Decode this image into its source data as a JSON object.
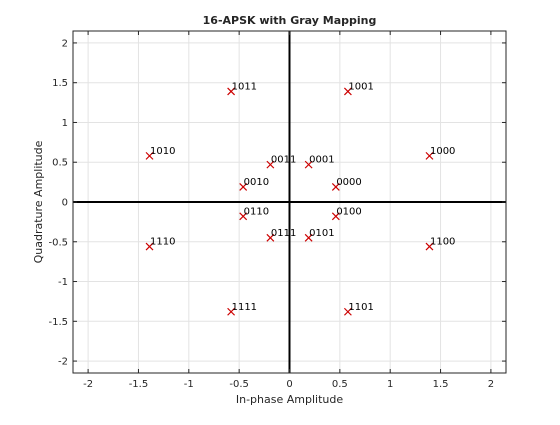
{
  "chart_data": {
    "type": "scatter",
    "title": "16-APSK with Gray Mapping",
    "xlabel": "In-phase Amplitude",
    "ylabel": "Quadrature Amplitude",
    "xlim": [
      -2.15,
      2.15
    ],
    "ylim": [
      -2.15,
      2.15
    ],
    "xticks": [
      -2,
      -1.5,
      -1,
      -0.5,
      0,
      0.5,
      1,
      1.5,
      2
    ],
    "xtick_labels": [
      "-2",
      "-1.5",
      "-1",
      "-0.5",
      "0",
      "0.5",
      "1",
      "1.5",
      "2"
    ],
    "yticks": [
      2,
      1.5,
      1,
      0.5,
      0,
      -0.5,
      -1,
      -1.5,
      -2
    ],
    "ytick_labels": [
      "2",
      "1.5",
      "1",
      "0.5",
      "0",
      "-0.5",
      "-1",
      "-1.5",
      "-2"
    ],
    "grid": true,
    "marker": "x",
    "marker_color": "#cc0000",
    "points": [
      {
        "x": 0.46,
        "y": 0.19,
        "label": "0000"
      },
      {
        "x": 0.19,
        "y": 0.47,
        "label": "0001"
      },
      {
        "x": -0.46,
        "y": 0.19,
        "label": "0010"
      },
      {
        "x": -0.19,
        "y": 0.47,
        "label": "0011"
      },
      {
        "x": 0.46,
        "y": -0.18,
        "label": "0100"
      },
      {
        "x": 0.19,
        "y": -0.45,
        "label": "0101"
      },
      {
        "x": -0.46,
        "y": -0.18,
        "label": "0110"
      },
      {
        "x": -0.19,
        "y": -0.45,
        "label": "0111"
      },
      {
        "x": 1.39,
        "y": 0.58,
        "label": "1000"
      },
      {
        "x": 0.58,
        "y": 1.39,
        "label": "1001"
      },
      {
        "x": -1.39,
        "y": 0.58,
        "label": "1010"
      },
      {
        "x": -0.58,
        "y": 1.39,
        "label": "1011"
      },
      {
        "x": 1.39,
        "y": -0.56,
        "label": "1100"
      },
      {
        "x": 0.58,
        "y": -1.38,
        "label": "1101"
      },
      {
        "x": -1.39,
        "y": -0.56,
        "label": "1110"
      },
      {
        "x": -0.58,
        "y": -1.38,
        "label": "1111"
      }
    ]
  }
}
